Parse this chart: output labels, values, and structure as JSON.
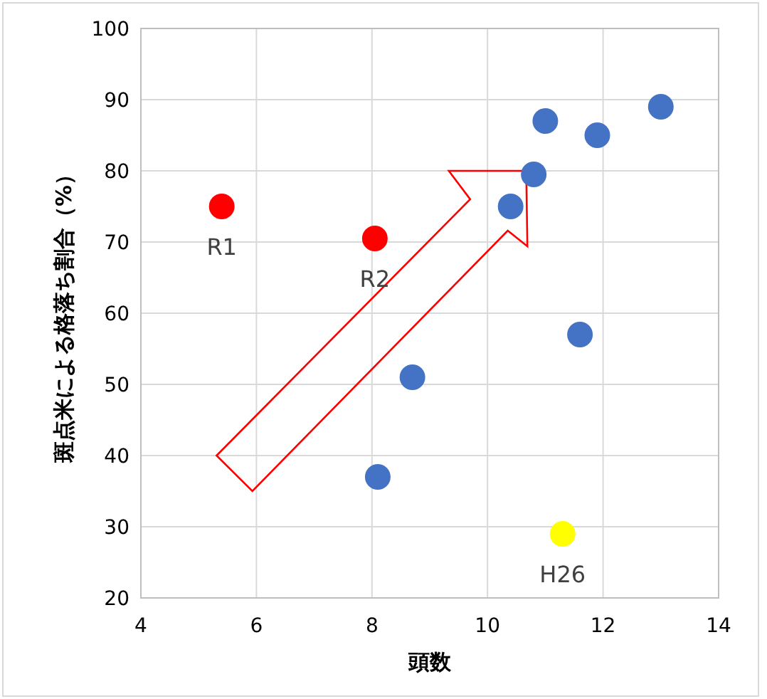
{
  "chart_data": {
    "type": "scatter",
    "xlabel": "頭数",
    "ylabel": "斑点米による格落ち割合（%）",
    "series": [
      {
        "color": "#4472c4",
        "x": [
          8.1,
          8.7,
          10.4,
          10.8,
          11.0,
          11.9,
          13.0,
          11.6
        ],
        "values": [
          37,
          51,
          75,
          79.5,
          87,
          85,
          89,
          57
        ]
      },
      {
        "color": "#ff0000",
        "x": [
          5.4,
          8.05
        ],
        "values": [
          75,
          70.5
        ]
      },
      {
        "color": "#ffff00",
        "x": [
          11.3
        ],
        "values": [
          29
        ]
      }
    ],
    "annotations": [
      {
        "text": "R1",
        "x": 5.4,
        "y": 75
      },
      {
        "text": "R2",
        "x": 8.05,
        "y": 70.5
      },
      {
        "text": "H26",
        "x": 11.3,
        "y": 29
      }
    ],
    "xlim": [
      4,
      14
    ],
    "ylim": [
      20,
      100
    ],
    "xticks": [
      4,
      6,
      8,
      10,
      12,
      14
    ],
    "yticks": [
      20,
      30,
      40,
      50,
      60,
      70,
      80,
      90,
      100
    ],
    "grid": true,
    "marker": "circle"
  }
}
